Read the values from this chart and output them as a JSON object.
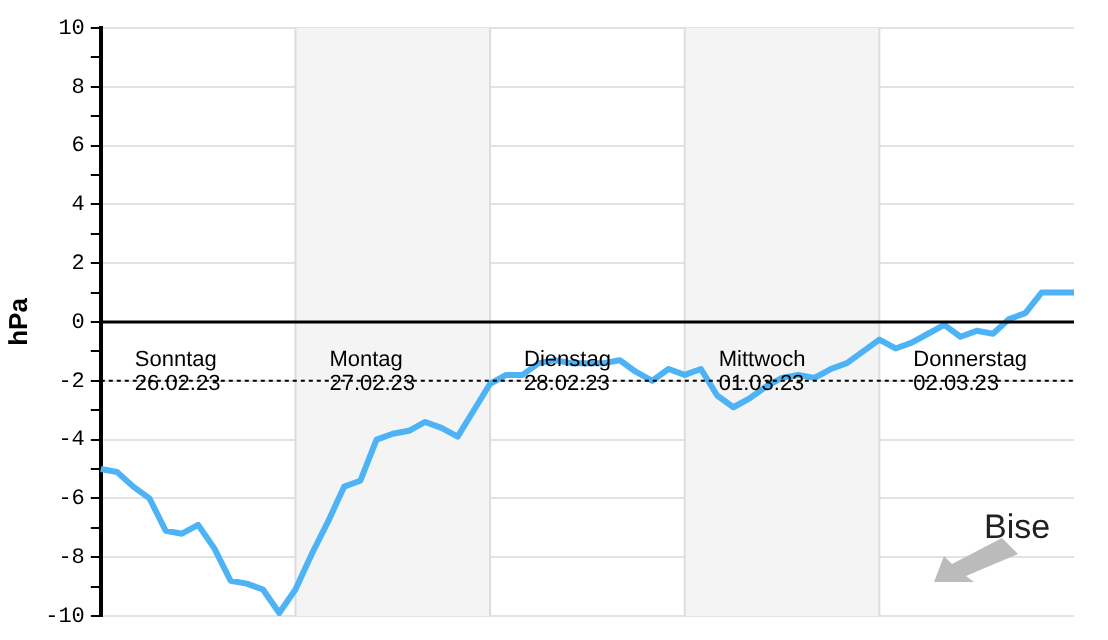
{
  "chart_data": {
    "type": "line",
    "ylabel": "hPa",
    "categories": [
      null,
      null,
      null,
      null,
      null,
      null,
      null,
      null,
      null,
      null,
      null,
      null,
      null,
      null,
      null,
      null,
      null,
      null,
      null,
      null,
      null,
      null,
      null,
      null,
      null,
      null,
      null,
      null,
      null,
      null,
      null,
      null,
      null,
      null,
      null,
      null,
      null,
      null,
      null,
      null,
      null,
      null,
      null,
      null,
      null,
      null,
      null,
      null,
      null,
      null,
      null,
      null,
      null,
      null,
      null,
      null,
      null,
      null,
      null,
      null,
      null
    ],
    "series": [
      {
        "color": "#4db3f5",
        "values": [
          -5.0,
          -5.1,
          -5.6,
          -6.0,
          -7.1,
          -7.2,
          -6.9,
          -7.7,
          -8.8,
          -8.9,
          -9.1,
          -9.9,
          -9.1,
          -7.9,
          -6.8,
          -5.6,
          -5.4,
          -4.0,
          -3.8,
          -3.7,
          -3.4,
          -3.6,
          -3.9,
          -3.0,
          -2.1,
          -1.8,
          -1.8,
          -1.4,
          -1.3,
          -1.4,
          -1.4,
          -1.4,
          -1.3,
          -1.7,
          -2.0,
          -1.6,
          -1.8,
          -1.6,
          -2.5,
          -2.9,
          -2.6,
          -2.2,
          -1.9,
          -1.8,
          -1.9,
          -1.6,
          -1.4,
          -1.0,
          -0.6,
          -0.9,
          -0.7,
          -0.4,
          -0.1,
          -0.5,
          -0.3,
          -0.4,
          0.1,
          0.3,
          1.0,
          1.0,
          1.0
        ]
      }
    ],
    "ylim": [
      -10,
      10
    ],
    "yticks": [
      -10,
      {
        "value": -9,
        "label": null
      },
      -8,
      {
        "value": -7,
        "label": null
      },
      -6,
      {
        "value": -5,
        "label": null
      },
      -4,
      {
        "value": -3,
        "label": null
      },
      -2,
      {
        "value": -1,
        "label": null
      },
      0,
      {
        "value": 1,
        "label": null
      },
      2,
      {
        "value": 3,
        "label": null
      },
      4,
      {
        "value": 5,
        "label": null
      },
      6,
      {
        "value": 7,
        "label": null
      },
      8,
      {
        "value": 9,
        "label": null
      },
      10
    ],
    "tick_labels": "y",
    "grid": true,
    "legend": false,
    "marker": "none",
    "line_style": "solid",
    "ref_lines": [
      {
        "axis": "y",
        "value": 0,
        "color": "#000000",
        "line_style": "solid"
      },
      {
        "axis": "y",
        "value": -2,
        "color": "#000000",
        "line_style": "dotted"
      }
    ],
    "annotations": [
      "Sonntag\n26.02.23",
      "Montag\n27.02.23",
      "Dienstag\n28.02.23",
      "Mittwoch\n01.03.23",
      "Donnerstag\n02.03.23",
      "Bise"
    ]
  }
}
